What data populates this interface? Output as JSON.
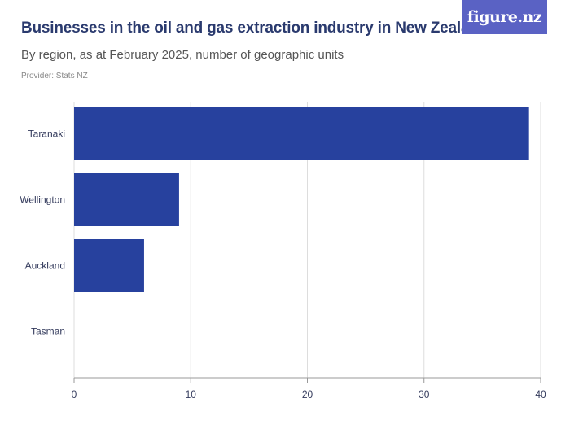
{
  "header": {
    "title": "Businesses in the oil and gas extraction industry in New Zealand",
    "subtitle": "By region, as at February 2025, number of geographic units",
    "provider": "Provider: Stats NZ"
  },
  "logo": {
    "text": "figure.nz",
    "color": "#5a62c4"
  },
  "chart_data": {
    "type": "bar",
    "orientation": "horizontal",
    "categories": [
      "Taranaki",
      "Wellington",
      "Auckland",
      "Tasman"
    ],
    "values": [
      39,
      9,
      6,
      0
    ],
    "xlim": [
      0,
      40
    ],
    "xticks": [
      0,
      10,
      20,
      30,
      40
    ],
    "bar_color": "#27419e",
    "grid": true
  }
}
